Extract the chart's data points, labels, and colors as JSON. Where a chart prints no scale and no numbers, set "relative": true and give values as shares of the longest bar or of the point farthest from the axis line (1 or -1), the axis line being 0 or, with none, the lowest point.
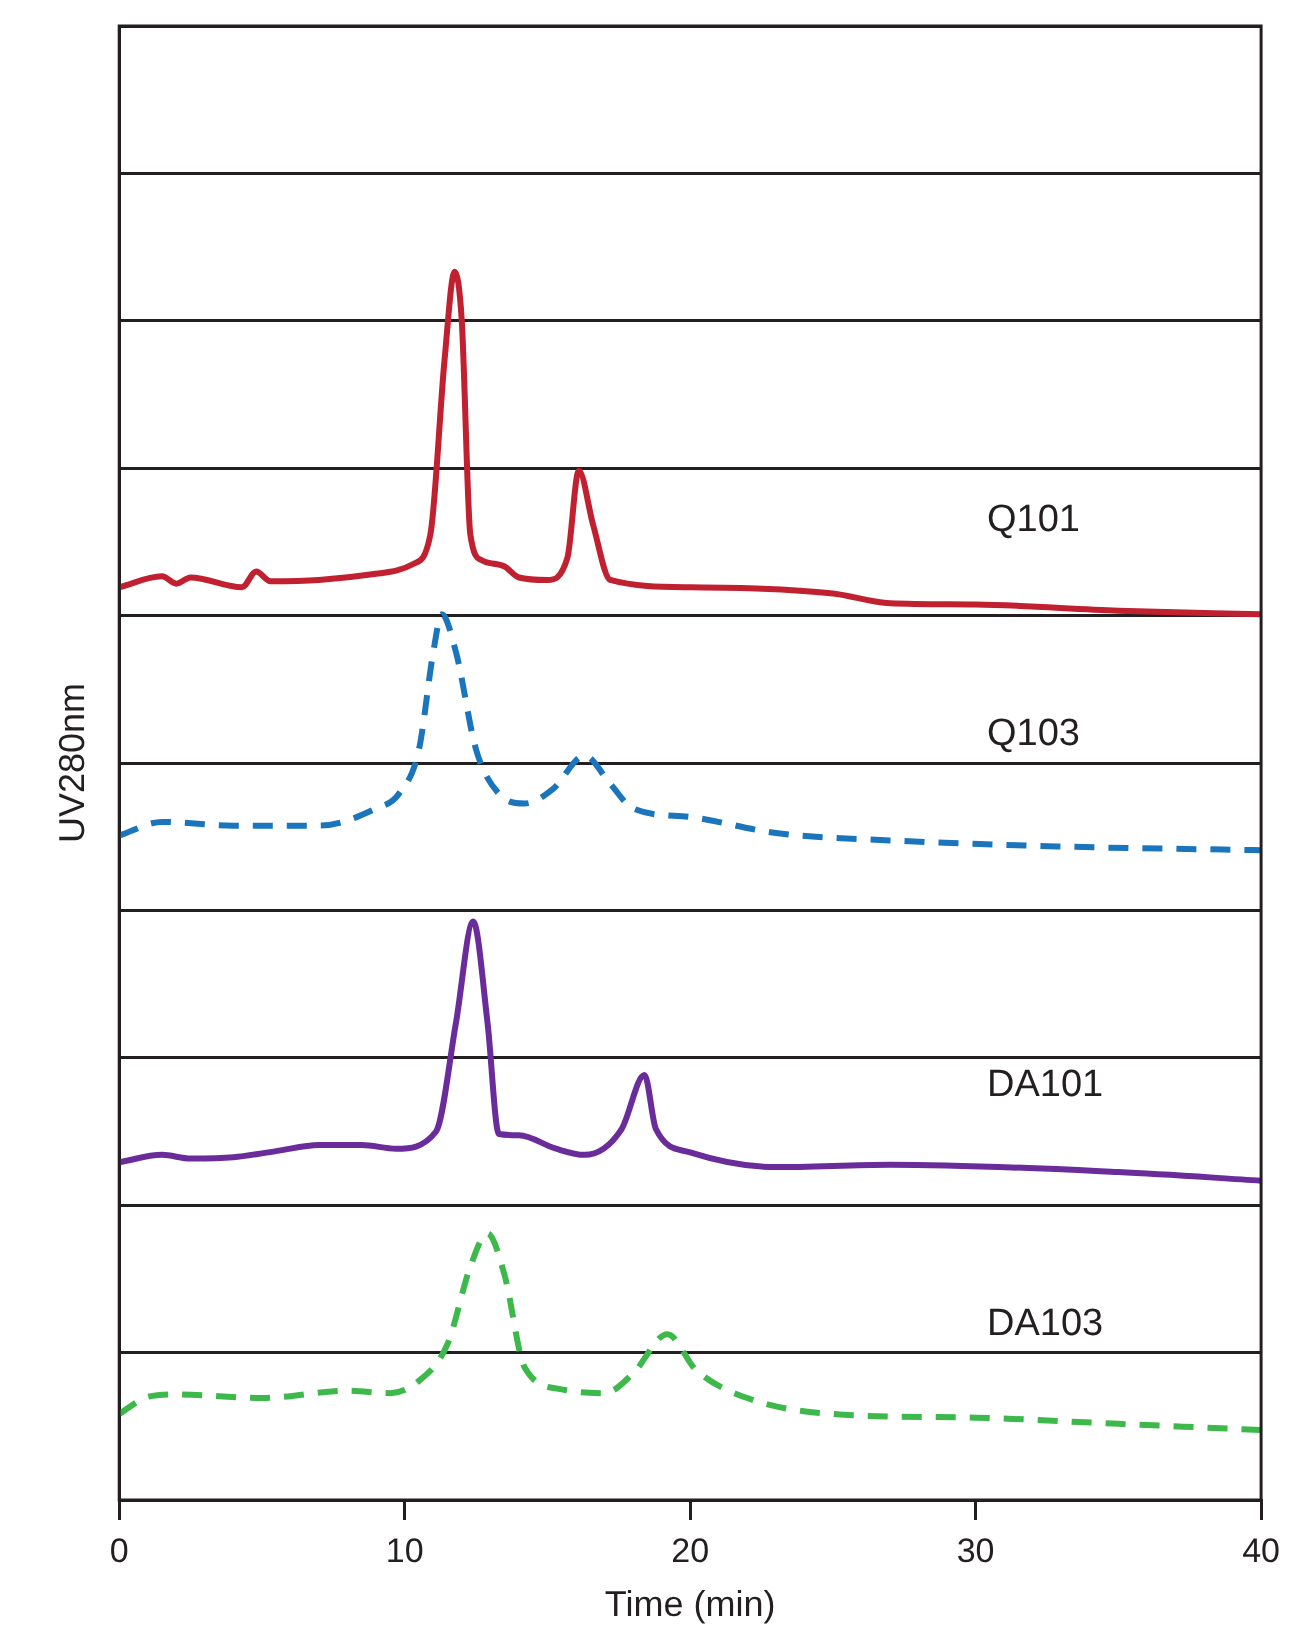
{
  "chart_data": {
    "type": "line",
    "relative": true,
    "xlabel": "Time (min)",
    "ylabel": "UV280nm",
    "xlim": [
      0,
      40
    ],
    "xticks": [
      0,
      10,
      20,
      30,
      40
    ],
    "grid": "y",
    "legend": false,
    "marker": "none",
    "series": [
      {
        "name": "Q101",
        "color": "#c0202f",
        "line_style": "solid",
        "x": [
          0,
          1.5,
          2,
          2.5,
          4.3,
          4.8,
          5.3,
          7,
          9,
          10.3,
          10.9,
          11.4,
          11.75,
          12.0,
          12.3,
          12.7,
          13.5,
          14,
          15,
          15.7,
          16.1,
          16.6,
          17.2,
          20,
          25,
          27,
          30,
          35,
          40
        ],
        "values": [
          0.743,
          0.752,
          0.746,
          0.751,
          0.743,
          0.756,
          0.748,
          0.749,
          0.754,
          0.762,
          0.786,
          0.929,
          1,
          0.96,
          0.786,
          0.765,
          0.76,
          0.751,
          0.749,
          0.767,
          0.838,
          0.794,
          0.749,
          0.743,
          0.738,
          0.73,
          0.729,
          0.724,
          0.721
        ]
      },
      {
        "name": "Q103",
        "color": "#1a75bc",
        "line_style": "dashed",
        "x": [
          0,
          1.5,
          4,
          7,
          9,
          9.8,
          10.5,
          11,
          11.3,
          11.8,
          12.5,
          13.3,
          14.2,
          15.2,
          16.3,
          17.2,
          18,
          20,
          23,
          27,
          33,
          40
        ],
        "values": [
          0.541,
          0.552,
          0.549,
          0.549,
          0.563,
          0.575,
          0.611,
          0.69,
          0.721,
          0.69,
          0.611,
          0.575,
          0.567,
          0.579,
          0.606,
          0.583,
          0.563,
          0.556,
          0.543,
          0.537,
          0.532,
          0.529
        ]
      },
      {
        "name": "DA101",
        "color": "#6a2c9a",
        "line_style": "solid",
        "x": [
          0,
          1.5,
          2.5,
          4,
          5.5,
          7,
          8.5,
          9.7,
          11.1,
          11.8,
          12.4,
          12.9,
          13.3,
          14,
          15.3,
          16.3,
          17.6,
          18.4,
          18.8,
          20,
          23,
          27,
          35,
          40
        ],
        "values": [
          0.275,
          0.281,
          0.278,
          0.279,
          0.284,
          0.289,
          0.289,
          0.286,
          0.3,
          0.389,
          0.471,
          0.389,
          0.298,
          0.297,
          0.286,
          0.281,
          0.302,
          0.346,
          0.302,
          0.283,
          0.271,
          0.273,
          0.267,
          0.26
        ]
      },
      {
        "name": "DA103",
        "color": "#3db84a",
        "line_style": "dashed",
        "x": [
          0,
          1,
          2,
          5,
          8,
          9.5,
          10.5,
          11.5,
          12.3,
          12.9,
          13.5,
          14.2,
          15.5,
          17,
          18,
          19.2,
          20.2,
          22,
          25,
          30,
          35,
          40
        ],
        "values": [
          0.07,
          0.084,
          0.086,
          0.083,
          0.089,
          0.087,
          0.097,
          0.127,
          0.19,
          0.217,
          0.183,
          0.108,
          0.09,
          0.087,
          0.103,
          0.135,
          0.106,
          0.083,
          0.07,
          0.067,
          0.062,
          0.057
        ]
      }
    ]
  }
}
